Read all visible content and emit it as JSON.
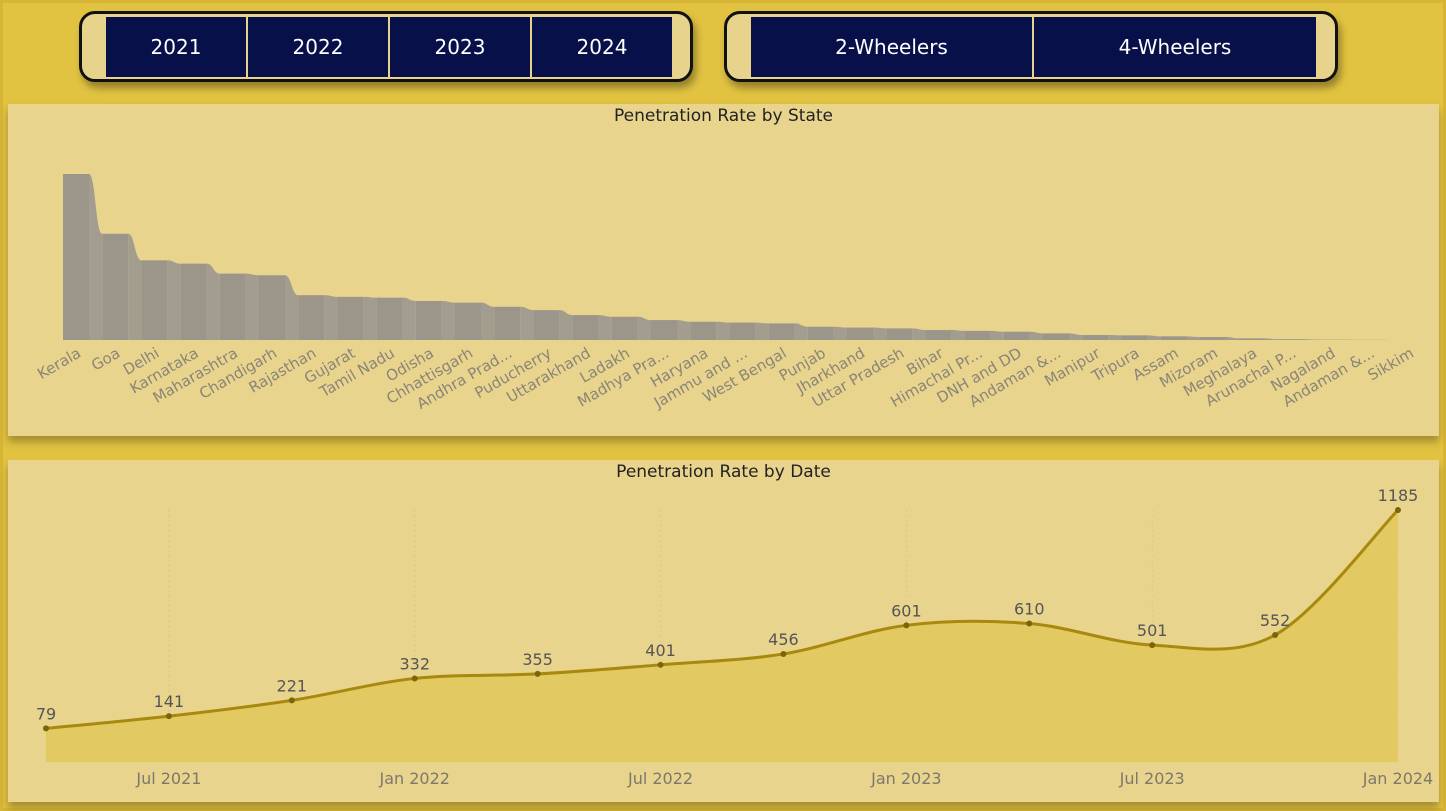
{
  "filters": {
    "years": [
      "2021",
      "2022",
      "2023",
      "2024"
    ],
    "vehicle_types": [
      "2-Wheelers",
      "4-Wheelers"
    ]
  },
  "colors": {
    "background": "#e2c341",
    "panel": "#e9d48e",
    "button": "#08104a",
    "bar": "#9c958a",
    "line": "#a8890d",
    "area": "#e2c962"
  },
  "chart_data": [
    {
      "type": "bar",
      "title": "Penetration Rate by State",
      "categories": [
        "Kerala",
        "Goa",
        "Delhi",
        "Karnataka",
        "Maharashtra",
        "Chandigarh",
        "Rajasthan",
        "Gujarat",
        "Tamil Nadu",
        "Odisha",
        "Chhattisgarh",
        "Andhra Prad...",
        "Puducherry",
        "Uttarakhand",
        "Ladakh",
        "Madhya Pra...",
        "Haryana",
        "Jammu and ...",
        "West Bengal",
        "Punjab",
        "Jharkhand",
        "Uttar Pradesh",
        "Bihar",
        "Himachal Pr...",
        "DNH and DD",
        "Andaman &...",
        "Manipur",
        "Tripura",
        "Assam",
        "Mizoram",
        "Meghalaya",
        "Arunachal P...",
        "Nagaland",
        "Andaman &...",
        "Sikkim"
      ],
      "values": [
        10.0,
        6.4,
        4.8,
        4.6,
        4.0,
        3.9,
        2.7,
        2.6,
        2.55,
        2.35,
        2.25,
        2.0,
        1.8,
        1.5,
        1.4,
        1.2,
        1.1,
        1.05,
        1.0,
        0.8,
        0.75,
        0.7,
        0.6,
        0.55,
        0.5,
        0.4,
        0.3,
        0.28,
        0.22,
        0.18,
        0.1,
        0.05,
        0.02,
        0.01,
        0.0
      ],
      "ylim": [
        0,
        10
      ],
      "xlabel": "",
      "ylabel": ""
    },
    {
      "type": "area",
      "title": "Penetration Rate by Date",
      "x": [
        "2021-04",
        "2021-07",
        "2021-10",
        "2022-01",
        "2022-04",
        "2022-07",
        "2022-10",
        "2023-01",
        "2023-04",
        "2023-07",
        "2023-10",
        "2024-01"
      ],
      "values": [
        79,
        141,
        221,
        332,
        355,
        401,
        456,
        601,
        610,
        501,
        552,
        1185
      ],
      "data_labels": [
        "79",
        "141",
        "221",
        "332",
        "355",
        "401",
        "456",
        "601",
        "610",
        "501",
        "552",
        "1185"
      ],
      "x_ticks": [
        "Jul 2021",
        "Jan 2022",
        "Jul 2022",
        "Jan 2023",
        "Jul 2023",
        "Jan 2024"
      ],
      "ylim": [
        0,
        1185
      ],
      "grid": "vertical",
      "xlabel": "",
      "ylabel": ""
    }
  ]
}
